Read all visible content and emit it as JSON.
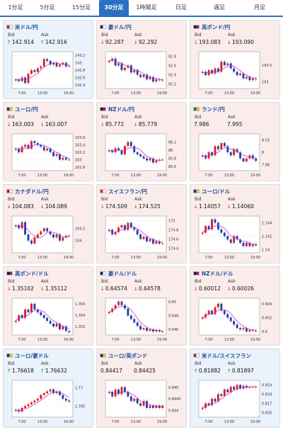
{
  "tabs": [
    {
      "label": "1分足",
      "active": false
    },
    {
      "label": "5分足",
      "active": false
    },
    {
      "label": "15分足",
      "active": false
    },
    {
      "label": "30分足",
      "active": true
    },
    {
      "label": "1時間足",
      "active": false
    },
    {
      "label": "日足",
      "active": false
    },
    {
      "label": "週足",
      "active": false
    },
    {
      "label": "月足",
      "active": false
    }
  ],
  "labels": {
    "bid": "Bid",
    "ask": "Ask"
  },
  "x_ticks": [
    "7:00",
    "13:00",
    "19:00"
  ],
  "colors": {
    "up_candle": "#d81e1e",
    "down_candle": "#1f3fa8",
    "ma_line": "#c33ad0",
    "up_arrow": "#1e8a2a",
    "down_arrow": "#d02020"
  },
  "cards": [
    {
      "pair": "米ドル/円",
      "bid": "142.914",
      "ask": "142.916",
      "direction": "up",
      "flag": "us-flag-icon",
      "chart_data": {
        "type": "candlestick",
        "x": [
          "7:00",
          "13:00",
          "19:00"
        ],
        "yticks": [
          "143.2",
          "143",
          "142.8",
          "142.6",
          "142.4"
        ],
        "ylim": [
          142.3,
          143.3
        ],
        "closes": [
          142.55,
          142.5,
          142.6,
          142.45,
          142.7,
          142.8,
          142.75,
          142.85,
          142.9,
          143.1,
          143.05,
          142.95,
          143.0,
          142.9,
          142.95,
          143.0,
          142.9,
          142.92
        ]
      }
    },
    {
      "pair": "豪ドル/円",
      "bid": "92.287",
      "ask": "92.292",
      "direction": "down",
      "flag": "au-flag-icon",
      "chart_data": {
        "type": "candlestick",
        "x": [
          "7:00",
          "13:00",
          "19:00"
        ],
        "yticks": [
          "92.8",
          "92.6",
          "92.4",
          "92.2"
        ],
        "ylim": [
          92.1,
          92.9
        ],
        "closes": [
          92.7,
          92.75,
          92.6,
          92.65,
          92.5,
          92.55,
          92.6,
          92.45,
          92.5,
          92.4,
          92.35,
          92.4,
          92.3,
          92.35,
          92.25,
          92.3,
          92.28,
          92.29
        ]
      }
    },
    {
      "pair": "英ポンド/円",
      "bid": "193.083",
      "ask": "193.090",
      "direction": "down",
      "flag": "gb-flag-icon",
      "chart_data": {
        "type": "candlestick",
        "x": [
          "7:00",
          "13:00",
          "19:00"
        ],
        "yticks": [
          "193.5",
          "193"
        ],
        "ylim": [
          192.8,
          193.9
        ],
        "closes": [
          193.3,
          193.2,
          193.35,
          193.25,
          193.4,
          193.3,
          193.6,
          193.5,
          193.55,
          193.4,
          193.3,
          193.2,
          193.25,
          193.1,
          193.15,
          193.05,
          193.1,
          193.08
        ]
      }
    },
    {
      "pair": "ユーロ/円",
      "bid": "163.003",
      "ask": "163.007",
      "direction": "down",
      "flag": "eu-flag-icon",
      "chart_data": {
        "type": "candlestick",
        "x": [
          "7:00",
          "13:00",
          "19:00"
        ],
        "yticks": [
          "163.6",
          "163.4",
          "163.2",
          "163",
          "162.8"
        ],
        "ylim": [
          162.7,
          163.7
        ],
        "closes": [
          163.3,
          163.2,
          163.35,
          163.4,
          163.3,
          163.5,
          163.45,
          163.4,
          163.35,
          163.25,
          163.3,
          163.2,
          163.1,
          163.15,
          163.0,
          163.05,
          163.0,
          163.0
        ]
      }
    },
    {
      "pair": "NZドル/円",
      "bid": "85.772",
      "ask": "85.779",
      "direction": "down",
      "flag": "nz-flag-icon",
      "chart_data": {
        "type": "candlestick",
        "x": [
          "7:00",
          "13:00",
          "19:00"
        ],
        "yticks": [
          "86.2",
          "86",
          "85.8",
          "85.6"
        ],
        "ylim": [
          85.5,
          86.4
        ],
        "closes": [
          86.0,
          85.95,
          86.05,
          86.0,
          85.9,
          86.1,
          86.2,
          86.1,
          85.95,
          85.9,
          85.85,
          85.8,
          85.75,
          85.8,
          85.7,
          85.75,
          85.77,
          85.77
        ]
      }
    },
    {
      "pair": "ランド/円",
      "bid": "7.986",
      "ask": "7.995",
      "direction": "none",
      "flag": "za-flag-icon",
      "chart_data": {
        "type": "candlestick",
        "x": [
          "7:00",
          "13:00",
          "19:00"
        ],
        "yticks": [
          "8.02",
          "8",
          "7.98"
        ],
        "ylim": [
          7.97,
          8.03
        ],
        "closes": [
          7.995,
          7.99,
          8.0,
          7.995,
          8.01,
          8.005,
          8.015,
          8.01,
          8.0,
          7.995,
          8.005,
          8.0,
          7.99,
          7.985,
          7.99,
          7.995,
          7.99,
          7.986
        ]
      }
    },
    {
      "pair": "カナダドル/円",
      "bid": "104.083",
      "ask": "104.089",
      "direction": "down",
      "flag": "ca-flag-icon",
      "chart_data": {
        "type": "candlestick",
        "x": [
          "7:00",
          "13:00",
          "19:00"
        ],
        "yticks": [
          "104.2",
          "104"
        ],
        "ylim": [
          103.8,
          104.4
        ],
        "closes": [
          104.25,
          104.2,
          104.3,
          104.1,
          104.0,
          103.95,
          104.05,
          104.1,
          104.15,
          104.2,
          104.15,
          104.1,
          104.05,
          104.1,
          104.0,
          104.05,
          104.08,
          104.08
        ]
      }
    },
    {
      "pair": "スイスフラン/円",
      "bid": "174.509",
      "ask": "174.525",
      "direction": "down",
      "flag": "ch-flag-icon",
      "chart_data": {
        "type": "candlestick",
        "x": [
          "7:00",
          "13:00",
          "19:00"
        ],
        "yticks": [
          "175",
          "174.8",
          "174.6",
          "174.4"
        ],
        "ylim": [
          174.3,
          175.1
        ],
        "closes": [
          174.8,
          174.7,
          174.75,
          174.85,
          174.9,
          174.8,
          174.95,
          174.85,
          174.8,
          174.7,
          174.6,
          174.65,
          174.55,
          174.6,
          174.5,
          174.55,
          174.5,
          174.51
        ]
      }
    },
    {
      "pair": "ユーロ/ドル",
      "bid": "1.14057",
      "ask": "1.14060",
      "direction": "down",
      "flag": "eu-flag-icon",
      "chart_data": {
        "type": "candlestick",
        "x": [
          "7:00",
          "13:00",
          "19:00"
        ],
        "yticks": [
          "1.144",
          "1.142",
          "1.14"
        ],
        "ylim": [
          1.1395,
          1.145
        ],
        "closes": [
          1.1425,
          1.1435,
          1.143,
          1.1445,
          1.144,
          1.143,
          1.1425,
          1.142,
          1.1415,
          1.141,
          1.142,
          1.1415,
          1.141,
          1.1405,
          1.141,
          1.1405,
          1.1408,
          1.1406
        ]
      }
    },
    {
      "pair": "英ポンド/ドル",
      "bid": "1.35102",
      "ask": "1.35112",
      "direction": "down",
      "flag": "gb-flag-icon",
      "chart_data": {
        "type": "candlestick",
        "x": [
          "7:00",
          "13:00",
          "19:00"
        ],
        "yticks": [
          "1.356",
          "1.354",
          "1.352"
        ],
        "ylim": [
          1.3505,
          1.357
        ],
        "closes": [
          1.353,
          1.354,
          1.3535,
          1.355,
          1.3545,
          1.356,
          1.355,
          1.3545,
          1.354,
          1.3535,
          1.353,
          1.3525,
          1.352,
          1.3525,
          1.3515,
          1.352,
          1.3512,
          1.351
        ]
      }
    },
    {
      "pair": "豪ドル/ドル",
      "bid": "0.64574",
      "ask": "0.64578",
      "direction": "down",
      "flag": "au-flag-icon",
      "chart_data": {
        "type": "candlestick",
        "x": [
          "7:00",
          "13:00",
          "19:00"
        ],
        "yticks": [
          "0.65",
          "0.648",
          "0.646"
        ],
        "ylim": [
          0.6452,
          0.6505
        ],
        "closes": [
          0.6485,
          0.649,
          0.6495,
          0.65,
          0.6495,
          0.649,
          0.648,
          0.6475,
          0.647,
          0.6465,
          0.646,
          0.6462,
          0.6458,
          0.646,
          0.6457,
          0.6459,
          0.6457,
          0.6457
        ]
      }
    },
    {
      "pair": "NZドル/ドル",
      "bid": "0.60012",
      "ask": "0.60026",
      "direction": "down",
      "flag": "nz-flag-icon",
      "chart_data": {
        "type": "candlestick",
        "x": [
          "7:00",
          "13:00",
          "19:00"
        ],
        "yticks": [
          "0.604",
          "0.602",
          "0.6"
        ],
        "ylim": [
          0.5995,
          0.6048
        ],
        "closes": [
          0.602,
          0.6025,
          0.603,
          0.6025,
          0.6035,
          0.604,
          0.603,
          0.6025,
          0.602,
          0.6015,
          0.601,
          0.6005,
          0.6003,
          0.6005,
          0.6,
          0.6002,
          0.6001,
          0.6001
        ]
      }
    },
    {
      "pair": "ユーロ/豪ドル",
      "bid": "1.76618",
      "ask": "1.76632",
      "direction": "up",
      "flag": "eu-flag-icon",
      "chart_data": {
        "type": "candlestick",
        "x": [
          "7:00",
          "13:00",
          "19:00"
        ],
        "yticks": [
          "1.77",
          "1.765"
        ],
        "ylim": [
          1.762,
          1.772
        ],
        "closes": [
          1.764,
          1.7635,
          1.7645,
          1.765,
          1.7655,
          1.766,
          1.7665,
          1.767,
          1.768,
          1.7685,
          1.769,
          1.7695,
          1.7685,
          1.769,
          1.768,
          1.767,
          1.7665,
          1.7662
        ]
      }
    },
    {
      "pair": "ユーロ/英ポンド",
      "bid": "0.84417",
      "ask": "0.84425",
      "direction": "none",
      "flag": "eu-flag-icon",
      "chart_data": {
        "type": "candlestick",
        "x": [
          "7:00",
          "13:00",
          "19:00"
        ],
        "yticks": [
          "0.845",
          "0.8445",
          "0.844"
        ],
        "ylim": [
          0.8437,
          0.8453
        ],
        "closes": [
          0.8448,
          0.8446,
          0.8449,
          0.8447,
          0.845,
          0.8448,
          0.8446,
          0.8444,
          0.8445,
          0.8443,
          0.8442,
          0.8444,
          0.8441,
          0.8442,
          0.8441,
          0.8442,
          0.8441,
          0.8442
        ]
      }
    },
    {
      "pair": "米ドル/スイスフラン",
      "bid": "0.81882",
      "ask": "0.81897",
      "direction": "up",
      "flag": "us-flag-icon",
      "chart_data": {
        "type": "candlestick",
        "x": [
          "7:00",
          "13:00",
          "19:00"
        ],
        "yticks": [
          "0.819",
          "0.818",
          "0.817",
          "0.816"
        ],
        "ylim": [
          0.8155,
          0.8195
        ],
        "closes": [
          0.8165,
          0.817,
          0.8168,
          0.8175,
          0.8172,
          0.818,
          0.8178,
          0.8185,
          0.8182,
          0.8188,
          0.8185,
          0.819,
          0.8186,
          0.8189,
          0.8187,
          0.8188,
          0.8188,
          0.8188
        ]
      }
    }
  ]
}
